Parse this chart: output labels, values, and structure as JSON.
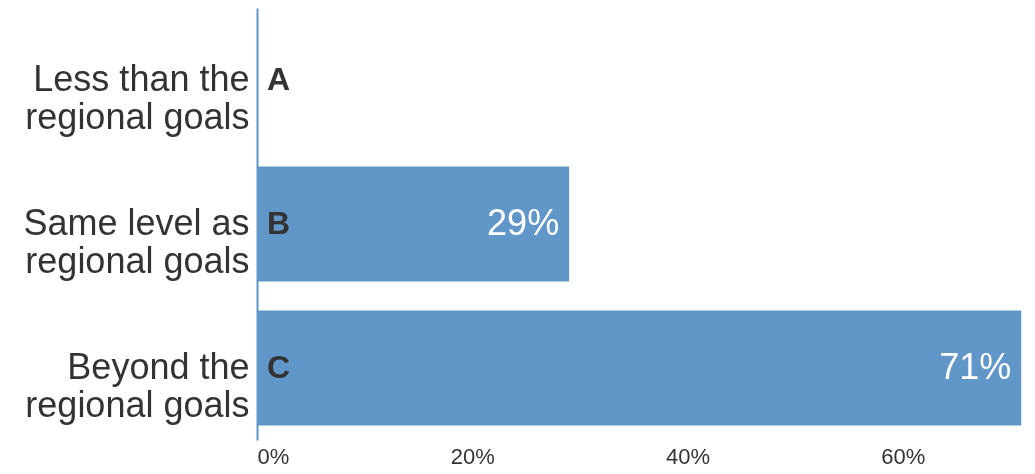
{
  "chart_data": {
    "type": "bar",
    "orientation": "horizontal",
    "categories": [
      "Less than the regional goals",
      "Same level as regional goals",
      "Beyond the regional goals"
    ],
    "values": [
      0,
      29,
      71
    ],
    "color": "#6096c8",
    "value_labels": [
      null,
      "29%",
      "71%"
    ],
    "xlim": [
      0,
      72
    ],
    "xticks": [
      {
        "value": 0,
        "label": "0%"
      },
      {
        "value": 20,
        "label": "20%"
      },
      {
        "value": 40,
        "label": "40%"
      },
      {
        "value": 60,
        "label": "60%"
      }
    ],
    "annotations": [
      "A",
      "B",
      "C"
    ],
    "grid": false
  }
}
